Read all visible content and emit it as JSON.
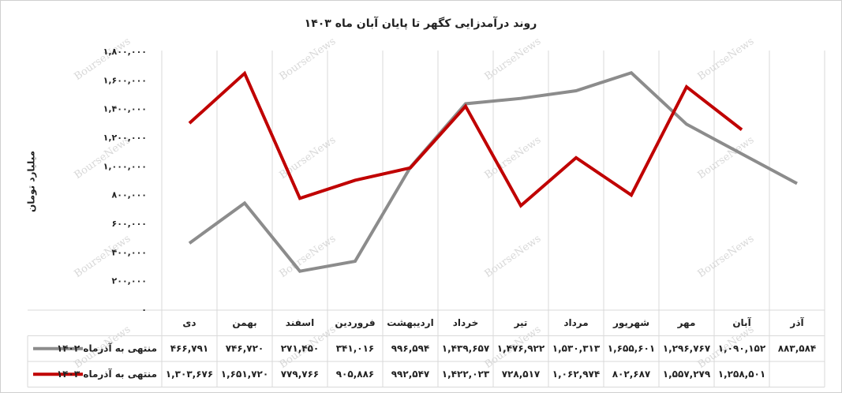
{
  "chart_data": {
    "type": "line",
    "title": "روند درآمدزایی کگهر تا پایان آبان ماه ۱۴۰۳",
    "y_label": "میلیارد تومان",
    "watermark": "BourseNews",
    "categories": [
      "دی",
      "بهمن",
      "اسفند",
      "فروردین",
      "اردیبهشت",
      "خرداد",
      "تیر",
      "مرداد",
      "شهریور",
      "مهر",
      "آبان",
      "آذر"
    ],
    "series": [
      {
        "name": "منتهی به آذرماه ۱۴۰۲",
        "color": "#8c8c8c",
        "values": [
          466791,
          746720,
          271450,
          341016,
          996594,
          1439657,
          1476922,
          1530313,
          1655601,
          1296767,
          1090152,
          883584
        ],
        "value_labels": [
          "۴۶۶,۷۹۱",
          "۷۴۶,۷۲۰",
          "۲۷۱,۴۵۰",
          "۳۴۱,۰۱۶",
          "۹۹۶,۵۹۴",
          "۱,۴۳۹,۶۵۷",
          "۱,۴۷۶,۹۲۲",
          "۱,۵۳۰,۳۱۳",
          "۱,۶۵۵,۶۰۱",
          "۱,۲۹۶,۷۶۷",
          "۱,۰۹۰,۱۵۲",
          "۸۸۳,۵۸۴"
        ]
      },
      {
        "name": "منتهی به آذرماه ۱۴۰۳",
        "color": "#c00000",
        "values": [
          1303676,
          1651720,
          779766,
          905886,
          992547,
          1422023,
          728517,
          1062974,
          802687,
          1557279,
          1258501,
          null
        ],
        "value_labels": [
          "۱,۳۰۳,۶۷۶",
          "۱,۶۵۱,۷۲۰",
          "۷۷۹,۷۶۶",
          "۹۰۵,۸۸۶",
          "۹۹۲,۵۴۷",
          "۱,۴۲۲,۰۲۳",
          "۷۲۸,۵۱۷",
          "۱,۰۶۲,۹۷۴",
          "۸۰۲,۶۸۷",
          "۱,۵۵۷,۲۷۹",
          "۱,۲۵۸,۵۰۱",
          null
        ]
      }
    ],
    "ylim": [
      0,
      1800000
    ],
    "yticks": [
      {
        "value": 0,
        "label": "۰"
      },
      {
        "value": 200000,
        "label": "۲۰۰,۰۰۰"
      },
      {
        "value": 400000,
        "label": "۴۰۰,۰۰۰"
      },
      {
        "value": 600000,
        "label": "۶۰۰,۰۰۰"
      },
      {
        "value": 800000,
        "label": "۸۰۰,۰۰۰"
      },
      {
        "value": 1000000,
        "label": "۱,۰۰۰,۰۰۰"
      },
      {
        "value": 1200000,
        "label": "۱,۲۰۰,۰۰۰"
      },
      {
        "value": 1400000,
        "label": "۱,۴۰۰,۰۰۰"
      },
      {
        "value": 1600000,
        "label": "۱,۶۰۰,۰۰۰"
      },
      {
        "value": 1800000,
        "label": "۱,۸۰۰,۰۰۰"
      }
    ],
    "grid": false
  }
}
